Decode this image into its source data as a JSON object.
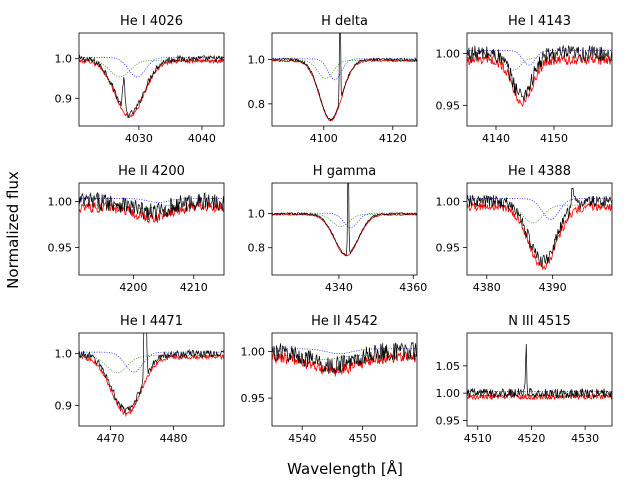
{
  "figure": {
    "ylabel": "Normalized flux",
    "xlabel": "Wavelength [Å]"
  },
  "colors": {
    "observed": "#000000",
    "model": "#ff0000",
    "primary": "#0000ff",
    "secondary": "#008000"
  },
  "chart_data": [
    {
      "type": "line",
      "title": "He I 4026",
      "center": 4028.5,
      "depth": 0.14,
      "width": 3.2,
      "emission": {
        "x": 4027.6,
        "height": 0.08,
        "width": 0.25
      },
      "noise": 0.008,
      "xlim": [
        4020.5,
        4043.5
      ],
      "ylim": [
        0.83,
        1.065
      ],
      "xticks": [
        4030,
        4040
      ],
      "yticks": [
        0.9,
        1.0
      ],
      "ytick_labels": [
        "0.9",
        "1.0"
      ],
      "series": [
        {
          "name": "observed"
        },
        {
          "name": "model"
        },
        {
          "name": "primary"
        },
        {
          "name": "secondary"
        }
      ]
    },
    {
      "type": "line",
      "title": "H delta",
      "center": 4102.0,
      "depth": 0.27,
      "width": 4.5,
      "emission": {
        "x": 4104.7,
        "height": 0.6,
        "width": 0.2
      },
      "noise": 0.006,
      "xlim": [
        4085,
        4127
      ],
      "ylim": [
        0.7,
        1.12
      ],
      "xticks": [
        4100,
        4120
      ],
      "yticks": [
        0.8,
        1.0
      ],
      "ytick_labels": [
        "0.8",
        "1.0"
      ],
      "series": [
        {
          "name": "observed"
        },
        {
          "name": "model"
        },
        {
          "name": "primary"
        },
        {
          "name": "secondary"
        }
      ]
    },
    {
      "type": "line",
      "title": "He I 4143",
      "center": 4144.5,
      "depth": 0.04,
      "width": 2.5,
      "emission": null,
      "noise": 0.008,
      "xlim": [
        4135,
        4160
      ],
      "ylim": [
        0.93,
        1.02
      ],
      "xticks": [
        4140,
        4150
      ],
      "yticks": [
        0.95,
        1.0
      ],
      "ytick_labels": [
        "0.95",
        "1.00"
      ],
      "series": [
        {
          "name": "observed"
        },
        {
          "name": "model"
        },
        {
          "name": "primary"
        },
        {
          "name": "secondary"
        }
      ]
    },
    {
      "type": "line",
      "title": "He II 4200",
      "center": 4203,
      "depth": 0.012,
      "width": 4,
      "emission": null,
      "noise": 0.01,
      "xlim": [
        4191,
        4215
      ],
      "ylim": [
        0.92,
        1.02
      ],
      "xticks": [
        4200,
        4210
      ],
      "yticks": [
        0.95,
        1.0
      ],
      "ytick_labels": [
        "0.95",
        "1.00"
      ],
      "series": [
        {
          "name": "observed"
        },
        {
          "name": "model"
        },
        {
          "name": "primary"
        },
        {
          "name": "secondary"
        }
      ]
    },
    {
      "type": "line",
      "title": "H gamma",
      "center": 4342.0,
      "depth": 0.24,
      "width": 4.5,
      "emission": {
        "x": 4342.5,
        "height": 0.6,
        "width": 0.2
      },
      "noise": 0.006,
      "xlim": [
        4322,
        4361
      ],
      "ylim": [
        0.64,
        1.18
      ],
      "xticks": [
        4340,
        4360
      ],
      "yticks": [
        0.8,
        1.0
      ],
      "ytick_labels": [
        "0.8",
        "1.0"
      ],
      "series": [
        {
          "name": "observed"
        },
        {
          "name": "model"
        },
        {
          "name": "primary"
        },
        {
          "name": "secondary"
        }
      ]
    },
    {
      "type": "line",
      "title": "He I 4388",
      "center": 4388.5,
      "depth": 0.065,
      "width": 3,
      "emission": {
        "x": 4393.0,
        "height": 0.02,
        "width": 0.3
      },
      "noise": 0.007,
      "xlim": [
        4377,
        4399
      ],
      "ylim": [
        0.92,
        1.02
      ],
      "xticks": [
        4380,
        4390
      ],
      "yticks": [
        0.95,
        1.0
      ],
      "ytick_labels": [
        "0.95",
        "1.00"
      ],
      "series": [
        {
          "name": "observed"
        },
        {
          "name": "model"
        },
        {
          "name": "primary"
        },
        {
          "name": "secondary"
        }
      ]
    },
    {
      "type": "line",
      "title": "He I 4471",
      "center": 4472.5,
      "depth": 0.11,
      "width": 3.3,
      "emission": {
        "x": 4475.5,
        "height": 0.35,
        "width": 0.2
      },
      "noise": 0.007,
      "xlim": [
        4465,
        4488
      ],
      "ylim": [
        0.86,
        1.04
      ],
      "xticks": [
        4470,
        4480
      ],
      "yticks": [
        0.9,
        1.0
      ],
      "ytick_labels": [
        "0.9",
        "1.0"
      ],
      "series": [
        {
          "name": "observed"
        },
        {
          "name": "model"
        },
        {
          "name": "primary"
        },
        {
          "name": "secondary"
        }
      ]
    },
    {
      "type": "line",
      "title": "He II 4542",
      "center": 4545,
      "depth": 0.015,
      "width": 5,
      "emission": null,
      "noise": 0.01,
      "xlim": [
        4535,
        4559
      ],
      "ylim": [
        0.92,
        1.02
      ],
      "xticks": [
        4540,
        4550
      ],
      "yticks": [
        0.95,
        1.0
      ],
      "ytick_labels": [
        "0.95",
        "1.00"
      ],
      "series": [
        {
          "name": "observed"
        },
        {
          "name": "model"
        },
        {
          "name": "primary"
        },
        {
          "name": "secondary"
        }
      ]
    },
    {
      "type": "line",
      "title": "N III 4515",
      "center": 4515,
      "depth": 0.0,
      "width": 4,
      "emission": {
        "x": 4519.0,
        "height": 0.09,
        "width": 0.15
      },
      "noise": 0.009,
      "xlim": [
        4508,
        4535
      ],
      "ylim": [
        0.94,
        1.11
      ],
      "xticks": [
        4510,
        4520,
        4530
      ],
      "yticks": [
        0.95,
        1.0,
        1.05
      ],
      "ytick_labels": [
        "0.95",
        "1.00",
        "1.05"
      ],
      "series": [
        {
          "name": "observed"
        },
        {
          "name": "model"
        },
        {
          "name": "primary"
        },
        {
          "name": "secondary"
        }
      ]
    }
  ]
}
